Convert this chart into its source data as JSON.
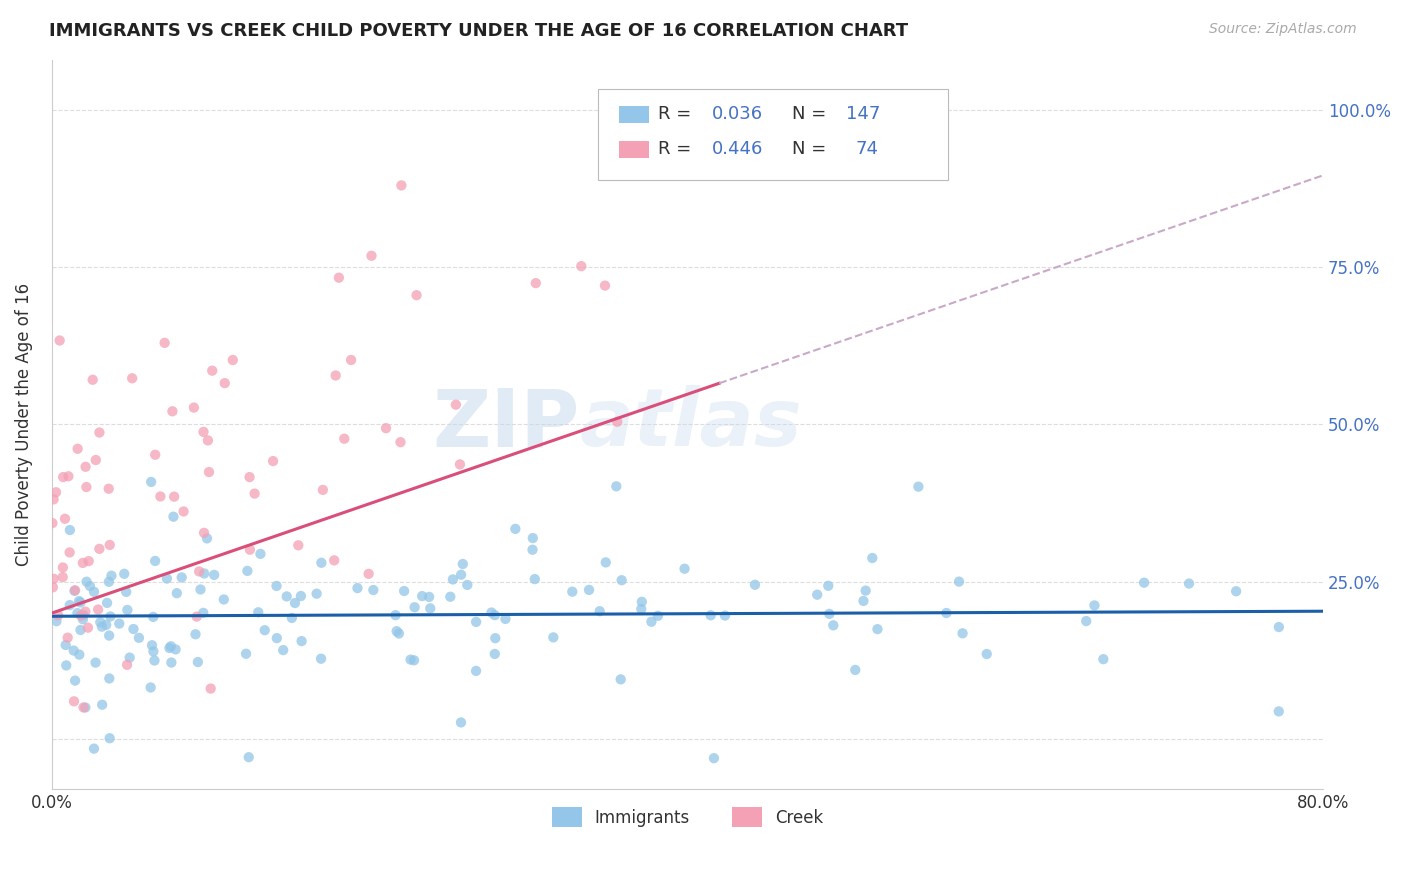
{
  "title": "IMMIGRANTS VS CREEK CHILD POVERTY UNDER THE AGE OF 16 CORRELATION CHART",
  "source": "Source: ZipAtlas.com",
  "ylabel": "Child Poverty Under the Age of 16",
  "x_min": 0.0,
  "x_max": 0.8,
  "y_min": -0.08,
  "y_max": 1.08,
  "x_tick_positions": [
    0.0,
    0.1,
    0.2,
    0.3,
    0.4,
    0.5,
    0.6,
    0.7,
    0.8
  ],
  "x_tick_labels": [
    "0.0%",
    "",
    "",
    "",
    "",
    "",
    "",
    "",
    "80.0%"
  ],
  "y_tick_positions": [
    0.0,
    0.25,
    0.5,
    0.75,
    1.0
  ],
  "y_tick_labels_right": [
    "",
    "25.0%",
    "50.0%",
    "75.0%",
    "100.0%"
  ],
  "immigrants_color": "#93c6e8",
  "creek_color": "#f4a0b5",
  "immigrants_line_color": "#1a5fa8",
  "creek_line_color": "#d94f7a",
  "creek_dashed_color": "#c8aac8",
  "R_immigrants": 0.036,
  "N_immigrants": 147,
  "R_creek": 0.446,
  "N_creek": 74,
  "watermark_zip": "ZIP",
  "watermark_atlas": "atlas",
  "background_color": "#ffffff",
  "grid_color": "#dddddd",
  "value_color": "#4472c4",
  "text_color": "#333333"
}
